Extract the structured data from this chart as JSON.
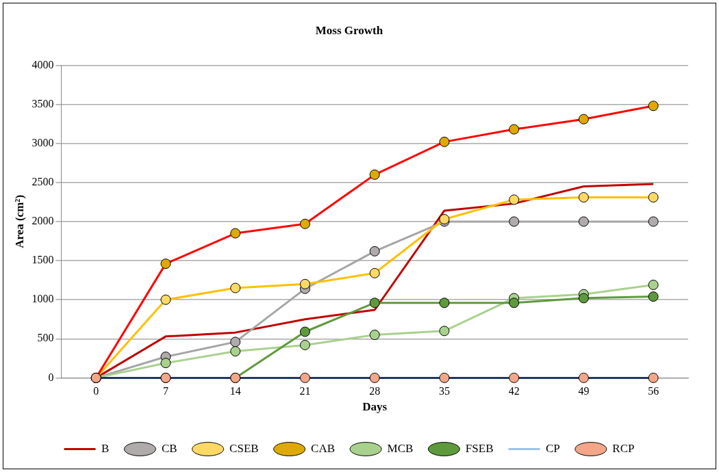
{
  "chart_data": {
    "type": "line",
    "title": "Moss Growth",
    "xlabel": "Days",
    "ylabel": "Area (cm²)",
    "categories": [
      "0",
      "7",
      "14",
      "21",
      "28",
      "35",
      "42",
      "49",
      "56"
    ],
    "ylim": [
      0,
      4000
    ],
    "yticks": [
      0,
      500,
      1000,
      1500,
      2000,
      2500,
      3000,
      3500,
      4000
    ],
    "grid": "y",
    "legend": "bottom",
    "marker": "circle",
    "line_style": "solid",
    "series": [
      {
        "name": "B",
        "color": "#c00000",
        "marker": "none",
        "values": [
          0,
          530,
          580,
          750,
          870,
          2140,
          2230,
          2450,
          2480
        ]
      },
      {
        "name": "CB",
        "color": "#a5a5a5",
        "colors": [
          "#afabab",
          "#afabab",
          "#afabab",
          "#afabab",
          "#afabab",
          "#afabab",
          "#afabab",
          "#afabab",
          "#afabab"
        ],
        "values": [
          0,
          270,
          460,
          1140,
          1620,
          2000,
          2000,
          2000,
          2000
        ]
      },
      {
        "name": "CSEB",
        "color": "#ffc000",
        "colors": [
          "#ffd966",
          "#ffd966",
          "#ffd966",
          "#ffd966",
          "#ffd966",
          "#ffd966",
          "#ffd966",
          "#ffd966",
          "#ffd966"
        ],
        "values": [
          0,
          1000,
          1150,
          1200,
          1340,
          2030,
          2280,
          2310,
          2310
        ]
      },
      {
        "name": "CAB",
        "color": "#ff0000",
        "colors": [
          "#dea900",
          "#dea900",
          "#dea900",
          "#dea900",
          "#dea900",
          "#dea900",
          "#dea900",
          "#dea900",
          "#dea900"
        ],
        "values": [
          0,
          1460,
          1850,
          1970,
          2600,
          3020,
          3180,
          3310,
          3480
        ]
      },
      {
        "name": "MCB",
        "color": "#a9d18e",
        "values": [
          0,
          190,
          340,
          420,
          550,
          600,
          1020,
          1070,
          1190
        ]
      },
      {
        "name": "FSEB",
        "color": "#5e9a3c",
        "values": [
          0,
          0,
          0,
          590,
          960,
          960,
          960,
          1020,
          1040
        ]
      },
      {
        "name": "CP",
        "color": "#9dc3e6",
        "marker": "none",
        "values": [
          null,
          null,
          null,
          null,
          null,
          null,
          null,
          null,
          null
        ]
      },
      {
        "name": "RCP",
        "color": "#203864",
        "colors": [
          "#f4a688",
          "#f4a688",
          "#f4a688",
          "#f4a688",
          "#f4a688",
          "#f4a688",
          "#f4a688",
          "#f4a688",
          "#f4a688"
        ],
        "values": [
          0,
          0,
          0,
          0,
          0,
          0,
          0,
          0,
          0
        ]
      }
    ]
  }
}
